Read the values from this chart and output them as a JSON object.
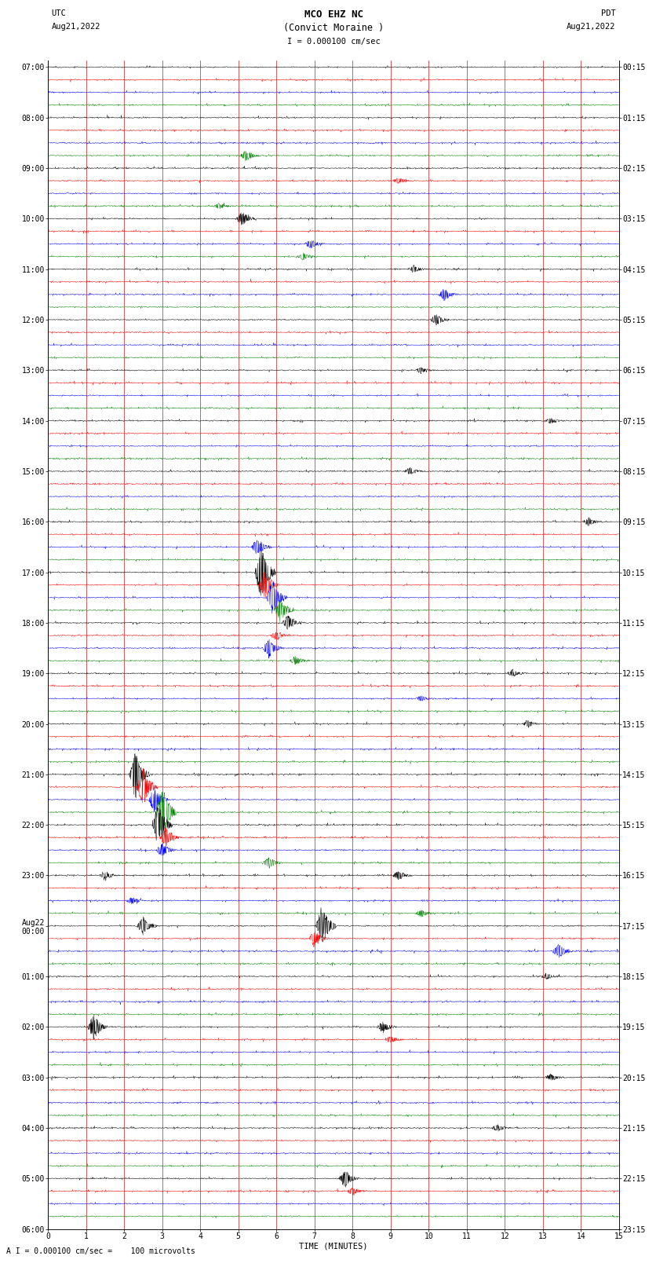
{
  "title_line1": "MCO EHZ NC",
  "title_line2": "(Convict Moraine )",
  "scale_label": "I = 0.000100 cm/sec",
  "utc_label1": "UTC",
  "utc_label2": "Aug21,2022",
  "pdt_label1": "PDT",
  "pdt_label2": "Aug21,2022",
  "footer_label": "A I = 0.000100 cm/sec =    100 microvolts",
  "xlabel": "TIME (MINUTES)",
  "left_times": [
    "07:00",
    "",
    "",
    "",
    "08:00",
    "",
    "",
    "",
    "09:00",
    "",
    "",
    "",
    "10:00",
    "",
    "",
    "",
    "11:00",
    "",
    "",
    "",
    "12:00",
    "",
    "",
    "",
    "13:00",
    "",
    "",
    "",
    "14:00",
    "",
    "",
    "",
    "15:00",
    "",
    "",
    "",
    "16:00",
    "",
    "",
    "",
    "17:00",
    "",
    "",
    "",
    "18:00",
    "",
    "",
    "",
    "19:00",
    "",
    "",
    "",
    "20:00",
    "",
    "",
    "",
    "21:00",
    "",
    "",
    "",
    "22:00",
    "",
    "",
    "",
    "23:00",
    "",
    "",
    "",
    "Aug22\n00:00",
    "",
    "",
    "",
    "01:00",
    "",
    "",
    "",
    "02:00",
    "",
    "",
    "",
    "03:00",
    "",
    "",
    "",
    "04:00",
    "",
    "",
    "",
    "05:00",
    "",
    "",
    "",
    "06:00",
    "",
    ""
  ],
  "right_times": [
    "00:15",
    "",
    "",
    "",
    "01:15",
    "",
    "",
    "",
    "02:15",
    "",
    "",
    "",
    "03:15",
    "",
    "",
    "",
    "04:15",
    "",
    "",
    "",
    "05:15",
    "",
    "",
    "",
    "06:15",
    "",
    "",
    "",
    "07:15",
    "",
    "",
    "",
    "08:15",
    "",
    "",
    "",
    "09:15",
    "",
    "",
    "",
    "10:15",
    "",
    "",
    "",
    "11:15",
    "",
    "",
    "",
    "12:15",
    "",
    "",
    "",
    "13:15",
    "",
    "",
    "",
    "14:15",
    "",
    "",
    "",
    "15:15",
    "",
    "",
    "",
    "16:15",
    "",
    "",
    "",
    "17:15",
    "",
    "",
    "",
    "18:15",
    "",
    "",
    "",
    "19:15",
    "",
    "",
    "",
    "20:15",
    "",
    "",
    "",
    "21:15",
    "",
    "",
    "",
    "22:15",
    "",
    "",
    "",
    "23:15",
    "",
    ""
  ],
  "trace_colors": [
    "black",
    "red",
    "blue",
    "green"
  ],
  "n_rows": 92,
  "minutes": 15,
  "bg_color": "white",
  "grid_color": "#cc0000",
  "title_fontsize": 9,
  "label_fontsize": 7.5,
  "tick_fontsize": 7,
  "events": [
    [
      7,
      5.2,
      0.35,
      "black"
    ],
    [
      9,
      9.2,
      0.2,
      "blue"
    ],
    [
      11,
      4.5,
      0.18,
      "red"
    ],
    [
      12,
      5.1,
      0.45,
      "green"
    ],
    [
      14,
      6.9,
      0.3,
      "blue"
    ],
    [
      15,
      6.7,
      0.25,
      "red"
    ],
    [
      16,
      9.6,
      0.22,
      "black"
    ],
    [
      18,
      10.4,
      0.4,
      "red"
    ],
    [
      20,
      10.2,
      0.38,
      "black"
    ],
    [
      24,
      9.8,
      0.2,
      "red"
    ],
    [
      28,
      13.2,
      0.18,
      "red"
    ],
    [
      32,
      9.5,
      0.22,
      "black"
    ],
    [
      36,
      14.2,
      0.25,
      "blue"
    ],
    [
      38,
      5.5,
      0.55,
      "green"
    ],
    [
      40,
      5.6,
      1.8,
      "black"
    ],
    [
      41,
      5.7,
      0.9,
      "red"
    ],
    [
      42,
      5.9,
      1.1,
      "blue"
    ],
    [
      43,
      6.1,
      0.7,
      "green"
    ],
    [
      44,
      6.3,
      0.5,
      "black"
    ],
    [
      45,
      6.0,
      0.3,
      "red"
    ],
    [
      46,
      5.8,
      0.6,
      "blue"
    ],
    [
      47,
      6.5,
      0.28,
      "green"
    ],
    [
      48,
      12.2,
      0.22,
      "black"
    ],
    [
      50,
      9.8,
      0.18,
      "red"
    ],
    [
      52,
      12.6,
      0.22,
      "red"
    ],
    [
      56,
      2.3,
      1.5,
      "blue"
    ],
    [
      57,
      2.5,
      1.2,
      "green"
    ],
    [
      58,
      2.8,
      0.8,
      "black"
    ],
    [
      59,
      3.0,
      1.8,
      "black"
    ],
    [
      60,
      2.9,
      1.4,
      "blue"
    ],
    [
      61,
      3.1,
      0.6,
      "red"
    ],
    [
      62,
      3.0,
      0.45,
      "blue"
    ],
    [
      63,
      5.8,
      0.35,
      "black"
    ],
    [
      64,
      9.2,
      0.3,
      "black"
    ],
    [
      64,
      1.5,
      0.25,
      "black"
    ],
    [
      66,
      2.2,
      0.22,
      "green"
    ],
    [
      67,
      9.8,
      0.25,
      "blue"
    ],
    [
      68,
      7.2,
      1.3,
      "red"
    ],
    [
      68,
      2.5,
      0.6,
      "red"
    ],
    [
      69,
      7.0,
      0.55,
      "blue"
    ],
    [
      70,
      13.4,
      0.45,
      "green"
    ],
    [
      72,
      13.1,
      0.2,
      "green"
    ],
    [
      76,
      1.2,
      0.8,
      "black"
    ],
    [
      76,
      8.8,
      0.35,
      "black"
    ],
    [
      77,
      9.0,
      0.22,
      "red"
    ],
    [
      80,
      13.2,
      0.22,
      "black"
    ],
    [
      84,
      11.8,
      0.22,
      "black"
    ],
    [
      88,
      7.8,
      0.55,
      "black"
    ],
    [
      89,
      8.0,
      0.25,
      "red"
    ]
  ]
}
